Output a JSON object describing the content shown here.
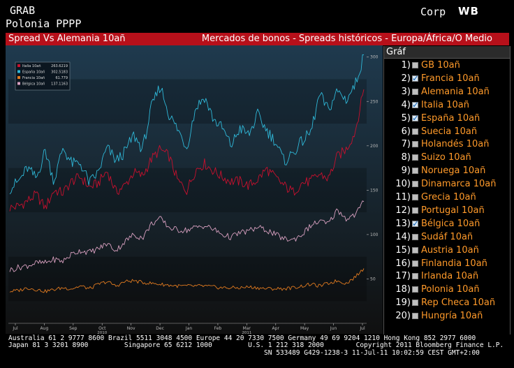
{
  "header": {
    "grab": "GRAB",
    "security": "Polonia PPPP",
    "sector": "Corp",
    "brand": "WB"
  },
  "titlebar": {
    "left": "Spread Vs  Alemania 10añ",
    "right": "Mercados de bonos - Spreads históricos - Europa/África/O Medio"
  },
  "panel": {
    "header": "Gráf",
    "items": [
      {
        "num": "1)",
        "label": "GB 10añ",
        "checked": false
      },
      {
        "num": "2)",
        "label": "Francia 10añ",
        "checked": true
      },
      {
        "num": "3)",
        "label": "Alemania 10añ",
        "checked": false
      },
      {
        "num": "4)",
        "label": "Italia 10añ",
        "checked": true
      },
      {
        "num": "5)",
        "label": "España 10añ",
        "checked": true
      },
      {
        "num": "6)",
        "label": "Suecia 10añ",
        "checked": false
      },
      {
        "num": "7)",
        "label": "Holandés 10añ",
        "checked": false
      },
      {
        "num": "8)",
        "label": "Suizo 10añ",
        "checked": false
      },
      {
        "num": "9)",
        "label": "Noruega 10añ",
        "checked": false
      },
      {
        "num": "10)",
        "label": "Dinamarca 10añ",
        "checked": false
      },
      {
        "num": "11)",
        "label": "Grecia 10añ",
        "checked": false
      },
      {
        "num": "12)",
        "label": "Portugal 10añ",
        "checked": false
      },
      {
        "num": "13)",
        "label": "Bélgica 10añ",
        "checked": true
      },
      {
        "num": "14)",
        "label": "Sudáf 10añ",
        "checked": false
      },
      {
        "num": "15)",
        "label": "Austria 10añ",
        "checked": false
      },
      {
        "num": "16)",
        "label": "Finlandia 10añ",
        "checked": false
      },
      {
        "num": "17)",
        "label": "Irlanda 10añ",
        "checked": false
      },
      {
        "num": "18)",
        "label": "Polonia 10añ",
        "checked": false
      },
      {
        "num": "19)",
        "label": "Rep Checa 10añ",
        "checked": false
      },
      {
        "num": "20)",
        "label": "Hungría 10añ",
        "checked": false
      }
    ]
  },
  "footer": {
    "line1": "Australia 61 2 9777 8600 Brazil 5511 3048 4500 Europe 44 20 7330 7500 Germany 49 69 9204 1210 Hong Kong 852 2977 6000",
    "line2": "Japan 81 3 3201 8900         Singapore 65 6212 1000         U.S. 1 212 318 2000        Copyright 2011 Bloomberg Finance L.P.",
    "line3": "                                                                SN 533489 G429-1238-3 11-Jul-11 10:02:59 CEST GMT+2:00"
  },
  "chart_data": {
    "type": "line",
    "title": "Spread Vs Alemania 10añ",
    "xlabel": "",
    "ylabel": "",
    "ylim": [
      0,
      310
    ],
    "yticks": [
      50,
      100,
      150,
      200,
      250,
      300
    ],
    "x_ticks": [
      "Jul",
      "Aug",
      "Sep",
      "Oct",
      "Nov",
      "Dec",
      "Jan",
      "Feb",
      "Mar",
      "Apr",
      "May",
      "Jun",
      "Jul"
    ],
    "year_labels": [
      {
        "label": "2010",
        "at": "Oct"
      },
      {
        "label": "2011",
        "at": "Mar"
      }
    ],
    "legend": {
      "position": "top-left",
      "entries": [
        {
          "name": "Italia 10añ",
          "value": "263.6219"
        },
        {
          "name": "España 10añ",
          "value": "302.5183"
        },
        {
          "name": "Francia 10añ",
          "value": "61.779"
        },
        {
          "name": "Bélgica 10añ",
          "value": "137.1163"
        }
      ]
    },
    "series": [
      {
        "name": "Italia 10añ",
        "color": "#c8102e",
        "values": [
          130,
          132,
          138,
          145,
          130,
          150,
          147,
          160,
          165,
          153,
          158,
          172,
          148,
          155,
          170,
          166,
          185,
          196,
          188,
          160,
          150,
          173,
          180,
          172,
          165,
          160,
          160,
          155,
          162,
          174,
          164,
          155,
          148,
          158,
          160,
          168,
          163,
          188,
          196,
          215,
          263.6
        ]
      },
      {
        "name": "España 10añ",
        "color": "#2fb8d8",
        "values": [
          152,
          160,
          175,
          163,
          195,
          160,
          198,
          180,
          180,
          158,
          170,
          198,
          183,
          193,
          212,
          196,
          243,
          268,
          235,
          218,
          198,
          243,
          255,
          230,
          220,
          200,
          220,
          212,
          235,
          218,
          205,
          182,
          192,
          205,
          215,
          258,
          240,
          262,
          252,
          268,
          302.5
        ]
      },
      {
        "name": "Francia 10añ",
        "color": "#e07a1f",
        "values": [
          36,
          37,
          40,
          38,
          36,
          38,
          40,
          39,
          42,
          39,
          44,
          47,
          42,
          47,
          48,
          46,
          45,
          44,
          43,
          42,
          42,
          42,
          42,
          41,
          40,
          40,
          40,
          41,
          40,
          39,
          39,
          39,
          40,
          42,
          44,
          42,
          45,
          48,
          45,
          52,
          61.8
        ]
      },
      {
        "name": "Bélgica 10añ",
        "color": "#d8a0c0",
        "values": [
          60,
          63,
          65,
          68,
          68,
          72,
          70,
          78,
          82,
          80,
          84,
          90,
          82,
          92,
          100,
          96,
          112,
          118,
          108,
          105,
          105,
          108,
          110,
          106,
          100,
          97,
          102,
          104,
          108,
          105,
          100,
          95,
          94,
          100,
          110,
          115,
          112,
          128,
          118,
          122,
          137.1
        ]
      }
    ]
  }
}
